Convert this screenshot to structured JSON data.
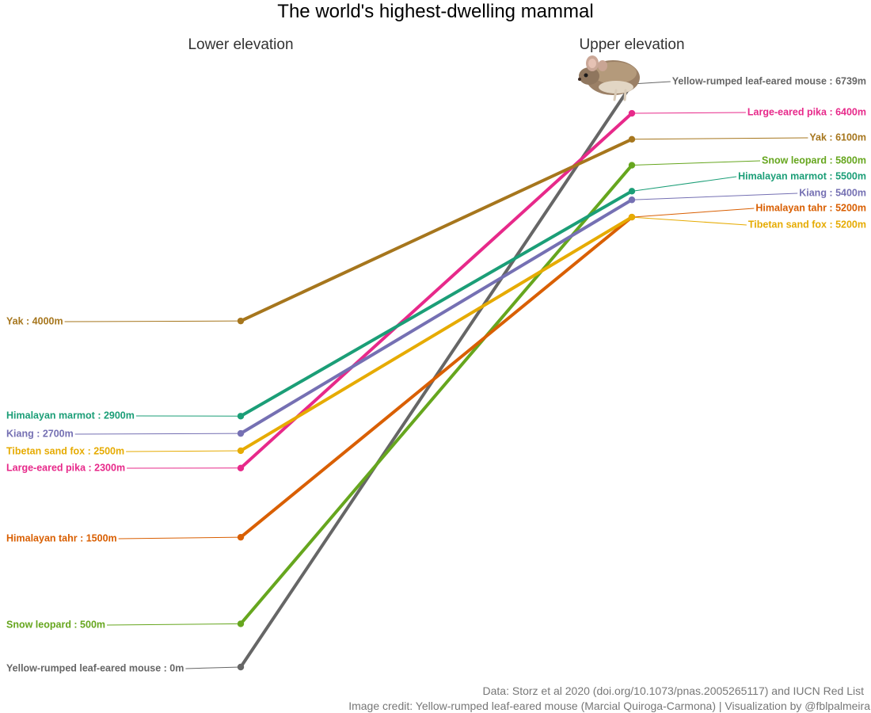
{
  "chart_data": {
    "type": "slope",
    "title": "The world's highest-dwelling mammal",
    "column_labels": [
      "Lower elevation",
      "Upper elevation"
    ],
    "unit": "m",
    "series": [
      {
        "name": "Yellow-rumped leaf-eared mouse",
        "lower": 0,
        "upper": 6739,
        "color": "#666666",
        "lower_label": "Yellow-rumped leaf-eared mouse : 0m",
        "upper_label": "Yellow-rumped leaf-eared mouse : 6739m"
      },
      {
        "name": "Large-eared pika",
        "lower": 2300,
        "upper": 6400,
        "color": "#e7298a",
        "lower_label": "Large-eared pika : 2300m",
        "upper_label": "Large-eared pika : 6400m"
      },
      {
        "name": "Yak",
        "lower": 4000,
        "upper": 6100,
        "color": "#a6761d",
        "lower_label": "Yak : 4000m",
        "upper_label": "Yak : 6100m"
      },
      {
        "name": "Snow leopard",
        "lower": 500,
        "upper": 5800,
        "color": "#66a61e",
        "lower_label": "Snow leopard : 500m",
        "upper_label": "Snow leopard : 5800m"
      },
      {
        "name": "Himalayan marmot",
        "lower": 2900,
        "upper": 5500,
        "color": "#1b9e77",
        "lower_label": "Himalayan marmot : 2900m",
        "upper_label": "Himalayan marmot : 5500m"
      },
      {
        "name": "Kiang",
        "lower": 2700,
        "upper": 5400,
        "color": "#7570b3",
        "lower_label": "Kiang : 2700m",
        "upper_label": "Kiang : 5400m"
      },
      {
        "name": "Himalayan tahr",
        "lower": 1500,
        "upper": 5200,
        "color": "#d95f02",
        "lower_label": "Himalayan tahr : 1500m",
        "upper_label": "Himalayan tahr : 5200m"
      },
      {
        "name": "Tibetan sand fox",
        "lower": 2500,
        "upper": 5200,
        "color": "#e6ab02",
        "lower_label": "Tibetan sand fox : 2500m",
        "upper_label": "Tibetan sand fox : 5200m"
      }
    ],
    "ylim": [
      0,
      6739
    ],
    "grid": false,
    "legend": "none",
    "image": "mouse-photo"
  },
  "captions": {
    "line1": "Data: Storz et al 2020 (doi.org/10.1073/pnas.2005265117) and IUCN Red List",
    "line2": "Image credit: Yellow-rumped leaf-eared mouse (Marcial Quiroga-Carmona) | Visualization by @fblpalmeira"
  }
}
